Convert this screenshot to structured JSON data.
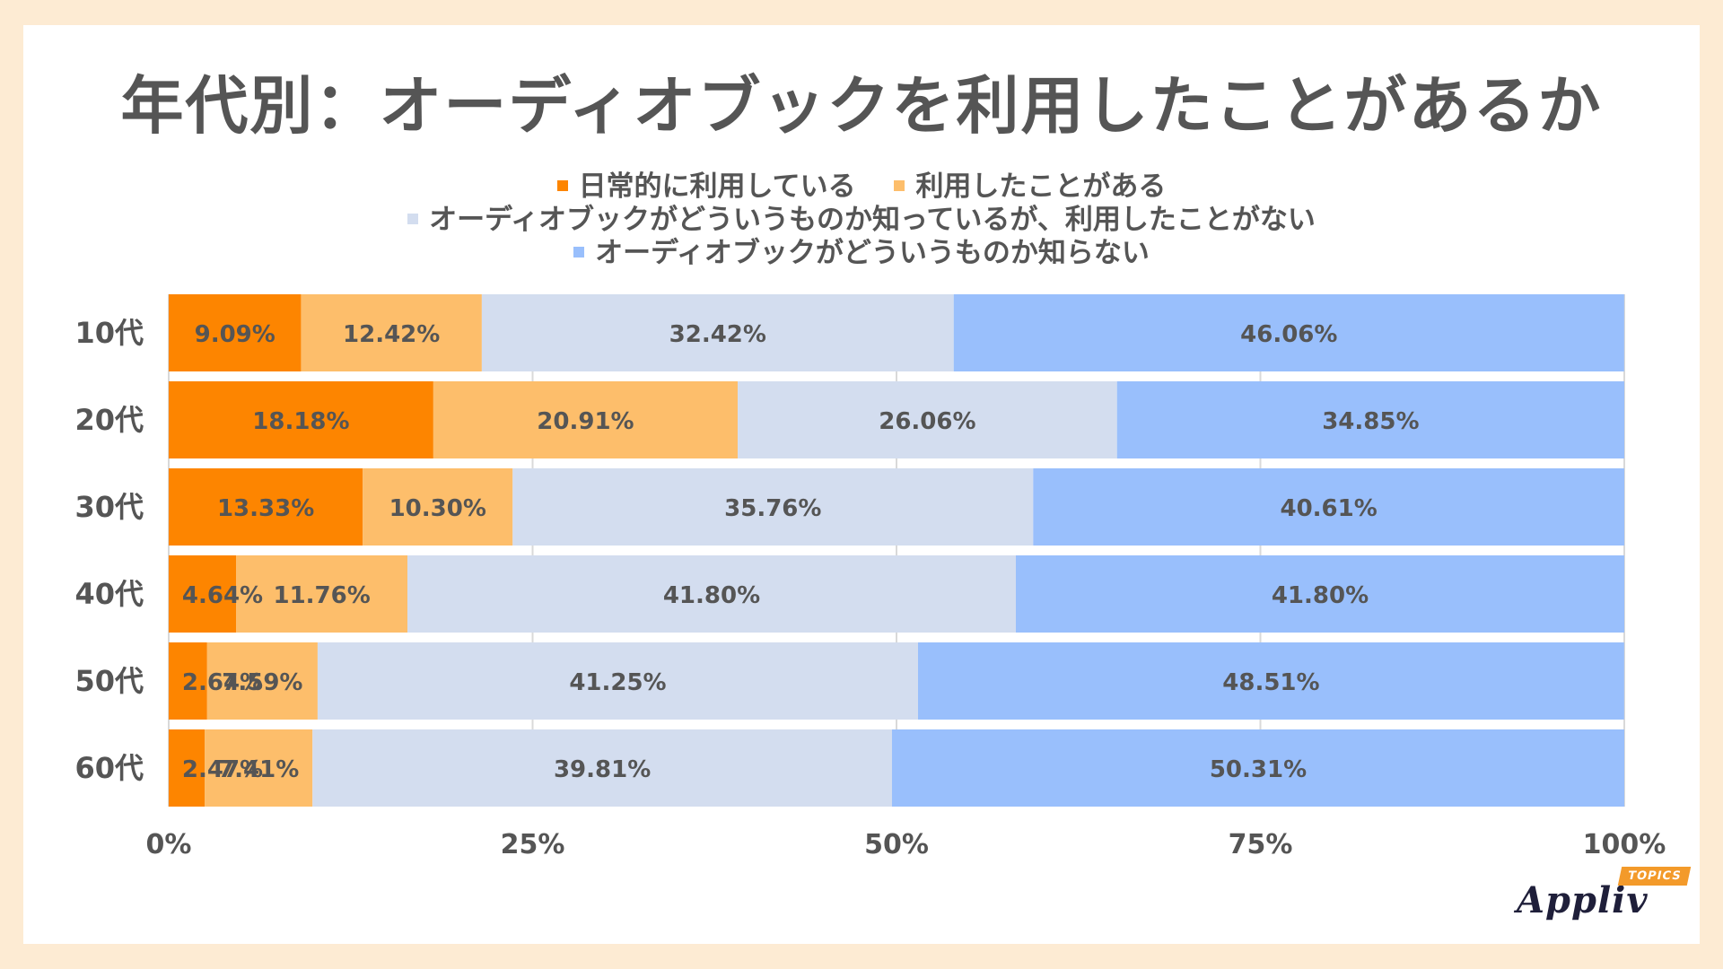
{
  "title": "年代別：オーディオブックを利用したことがあるか",
  "logo": {
    "name": "Appliv",
    "badge": "TOPICS"
  },
  "colors": {
    "daily": "#fd8500",
    "used": "#fdbe6b",
    "known": "#d3ddef",
    "unknown": "#99bffc",
    "grid": "#d9d9d9",
    "text": "#555555"
  },
  "chart_data": {
    "type": "bar",
    "orientation": "horizontal",
    "stacked": true,
    "categories": [
      "10代",
      "20代",
      "30代",
      "40代",
      "50代",
      "60代"
    ],
    "series": [
      {
        "name": "日常的に利用している",
        "color_key": "daily",
        "values": [
          9.09,
          18.18,
          13.33,
          4.64,
          2.64,
          2.47
        ],
        "labels": [
          "9.09%",
          "18.18%",
          "13.33%",
          "4.64%",
          "2.64%",
          "2.47%"
        ]
      },
      {
        "name": "利用したことがある",
        "color_key": "used",
        "values": [
          12.42,
          20.91,
          10.3,
          11.76,
          7.59,
          7.41
        ],
        "labels": [
          "12.42%",
          "20.91%",
          "10.30%",
          "11.76%",
          "7.59%",
          "7.41%"
        ]
      },
      {
        "name": "オーディオブックがどういうものか知っているが、利用したことがない",
        "color_key": "known",
        "values": [
          32.42,
          26.06,
          35.76,
          41.8,
          41.25,
          39.81
        ],
        "labels": [
          "32.42%",
          "26.06%",
          "35.76%",
          "41.80%",
          "41.25%",
          "39.81%"
        ]
      },
      {
        "name": "オーディオブックがどういうものか知らない",
        "color_key": "unknown",
        "values": [
          46.06,
          34.85,
          40.61,
          41.8,
          48.51,
          50.31
        ],
        "labels": [
          "46.06%",
          "34.85%",
          "40.61%",
          "41.80%",
          "48.51%",
          "50.31%"
        ]
      }
    ],
    "xticks": [
      "0%",
      "25%",
      "50%",
      "75%",
      "100%"
    ],
    "xtick_values": [
      0,
      25,
      50,
      75,
      100
    ],
    "xlim": [
      0,
      100
    ],
    "grid": true,
    "legend_position": "top"
  }
}
